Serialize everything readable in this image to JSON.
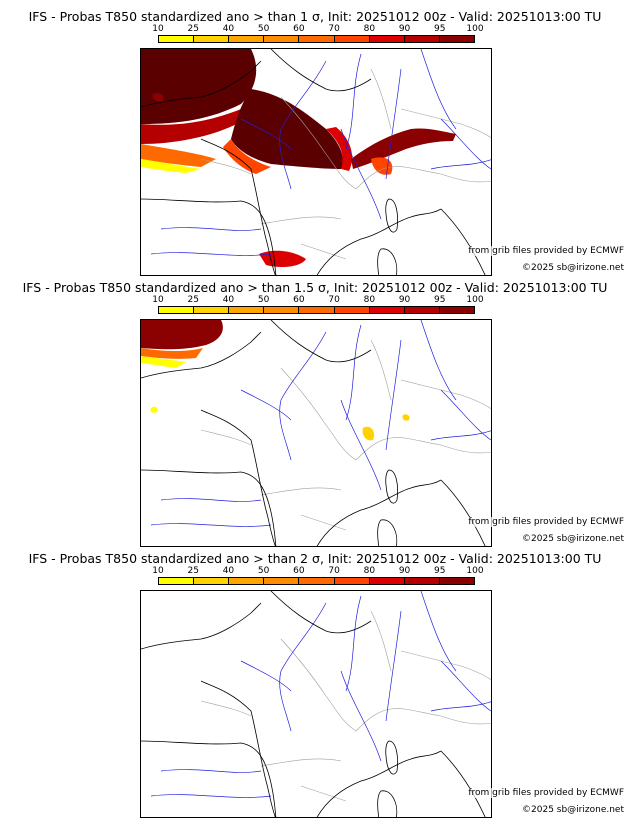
{
  "panels": [
    {
      "title": "IFS - Probas T850  standardized ano > than 1 σ, Init: 20251012 00z - Valid: 20251013:00 TU",
      "sigma": "1"
    },
    {
      "title": "IFS - Probas T850  standardized ano > than 1.5 σ, Init: 20251012 00z - Valid: 20251013:00 TU",
      "sigma": "1.5"
    },
    {
      "title": "IFS - Probas T850  standardized ano > than 2 σ, Init: 20251012 00z - Valid: 20251013:00 TU",
      "sigma": "2"
    }
  ],
  "scale": {
    "labels": [
      "10",
      "25",
      "40",
      "50",
      "60",
      "70",
      "80",
      "90",
      "95",
      "100"
    ],
    "colors": [
      "#ffff00",
      "#ffd200",
      "#ffa500",
      "#ff8c00",
      "#ff6a00",
      "#ff4500",
      "#dc0000",
      "#b40000",
      "#8b0000",
      "#5a0000"
    ]
  },
  "credits": {
    "source": "from grib files provided by ECMWF",
    "copyright": "©2025 sb@irizone.net"
  },
  "colors": {
    "coast": "#000000",
    "river": "#2020dd",
    "border": "#a0a0a0"
  }
}
